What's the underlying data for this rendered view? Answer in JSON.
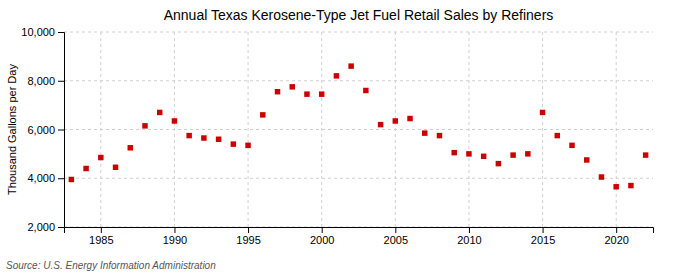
{
  "chart_data": {
    "type": "scatter",
    "title": "Annual Texas Kerosene-Type Jet Fuel Retail Sales by Refiners",
    "y_label": "Thousand Gallons per Day",
    "annotations": [
      "Source: U.S. Energy Information Administration"
    ],
    "x": [
      1983,
      1984,
      1985,
      1986,
      1987,
      1988,
      1989,
      1990,
      1991,
      1992,
      1993,
      1994,
      1995,
      1996,
      1997,
      1998,
      1999,
      2000,
      2001,
      2002,
      2003,
      2004,
      2005,
      2006,
      2007,
      2008,
      2009,
      2010,
      2011,
      2012,
      2013,
      2014,
      2015,
      2016,
      2017,
      2018,
      2019,
      2020,
      2021,
      2022
    ],
    "values": [
      3950,
      4400,
      4850,
      4450,
      5250,
      6150,
      6700,
      6350,
      5750,
      5650,
      5600,
      5400,
      5350,
      6600,
      7550,
      7750,
      7450,
      7450,
      8200,
      8600,
      7600,
      6200,
      6350,
      6450,
      5850,
      5750,
      5050,
      5000,
      4900,
      4600,
      4950,
      5000,
      6700,
      5750,
      5350,
      4750,
      4050,
      3650,
      3700,
      4950
    ],
    "color": "#cc0000",
    "marker": "square",
    "xlim": [
      1982.5,
      2022.5
    ],
    "xticks": [
      1985,
      1990,
      1995,
      2000,
      2005,
      2010,
      2015,
      2020
    ],
    "ylim": [
      2000,
      10000
    ],
    "yticks": [
      {
        "value": 2000,
        "label": "2,000"
      },
      {
        "value": 4000,
        "label": "4,000"
      },
      {
        "value": 6000,
        "label": "6,000"
      },
      {
        "value": 8000,
        "label": "8,000"
      },
      {
        "value": 10000,
        "label": "10,000"
      }
    ],
    "grid": true
  }
}
